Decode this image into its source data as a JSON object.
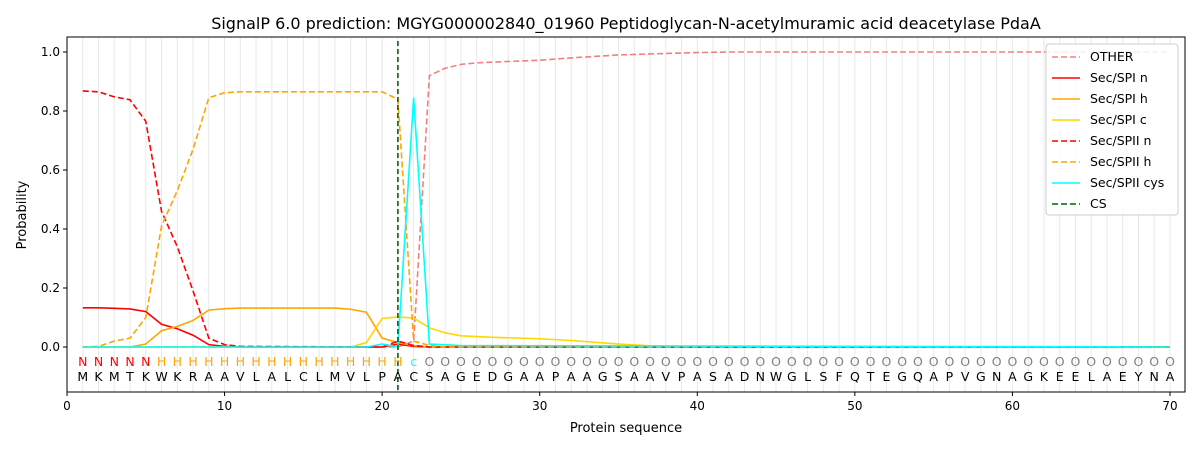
{
  "chart_data": {
    "type": "line",
    "title": "SignalP 6.0 prediction: MGYG000002840_01960 Peptidoglycan-N-acetylmuramic acid deacetylase PdaA",
    "xlabel": "Protein sequence",
    "ylabel": "Probability",
    "xlim": [
      0,
      71
    ],
    "ylim": [
      -0.13,
      1.05
    ],
    "xticks": [
      0,
      10,
      20,
      30,
      40,
      50,
      60,
      70
    ],
    "yticks": [
      "0.0",
      "0.2",
      "0.4",
      "0.6",
      "0.8",
      "1.0"
    ],
    "sequence": "MKMTKWKRAAVLALCLMVLPACSAGEDGAAPAAGSAAVPASADNWGLSFQTEGQAPVGNAGKEELAEYNA",
    "labels": "NNNNNHHHHHHHHHHHHHHHHcOOOOOOOOOOOOOOOOOOOOOOOOOOOOOOOOOOOOOOOOOOOOOOOO",
    "label_colors": {
      "N": "#ff0000",
      "H": "#ffa500",
      "c": "#00ffff",
      "O": "#808080"
    },
    "cs_position": 21,
    "legend_position": "top-right",
    "series": [
      {
        "name": "OTHER",
        "color": "#f08080",
        "dash": true,
        "points": [
          [
            1,
            0
          ],
          [
            21,
            0
          ],
          [
            22,
            0.02
          ],
          [
            23,
            0.92
          ],
          [
            24,
            0.945
          ],
          [
            25,
            0.958
          ],
          [
            26,
            0.963
          ],
          [
            28,
            0.968
          ],
          [
            30,
            0.972
          ],
          [
            32,
            0.98
          ],
          [
            35,
            0.99
          ],
          [
            38,
            0.995
          ],
          [
            40,
            0.998
          ],
          [
            42,
            1
          ],
          [
            70,
            1
          ]
        ]
      },
      {
        "name": "Sec/SPI n",
        "color": "#ff0000",
        "dash": false,
        "points": [
          [
            1,
            0.133
          ],
          [
            2,
            0.133
          ],
          [
            3,
            0.131
          ],
          [
            4,
            0.129
          ],
          [
            5,
            0.12
          ],
          [
            6,
            0.077
          ],
          [
            7,
            0.062
          ],
          [
            8,
            0.04
          ],
          [
            9,
            0.008
          ],
          [
            10,
            0.002
          ],
          [
            11,
            0
          ],
          [
            20,
            0
          ],
          [
            21,
            0.01
          ],
          [
            22,
            0.002
          ],
          [
            23,
            0
          ],
          [
            70,
            0
          ]
        ]
      },
      {
        "name": "Sec/SPI h",
        "color": "#ffa500",
        "dash": false,
        "points": [
          [
            1,
            0
          ],
          [
            4,
            0
          ],
          [
            5,
            0.01
          ],
          [
            6,
            0.055
          ],
          [
            7,
            0.07
          ],
          [
            8,
            0.09
          ],
          [
            9,
            0.125
          ],
          [
            10,
            0.13
          ],
          [
            11,
            0.132
          ],
          [
            17,
            0.132
          ],
          [
            18,
            0.128
          ],
          [
            19,
            0.118
          ],
          [
            20,
            0.03
          ],
          [
            21,
            0.015
          ],
          [
            22,
            0.005
          ],
          [
            23,
            0
          ],
          [
            70,
            0
          ]
        ]
      },
      {
        "name": "Sec/SPI c",
        "color": "#ffd700",
        "dash": false,
        "points": [
          [
            1,
            0
          ],
          [
            18,
            0
          ],
          [
            19,
            0.015
          ],
          [
            20,
            0.097
          ],
          [
            21,
            0.102
          ],
          [
            22,
            0.098
          ],
          [
            23,
            0.065
          ],
          [
            24,
            0.048
          ],
          [
            25,
            0.038
          ],
          [
            27,
            0.033
          ],
          [
            30,
            0.028
          ],
          [
            32,
            0.022
          ],
          [
            35,
            0.01
          ],
          [
            37,
            0.004
          ],
          [
            40,
            0.001
          ],
          [
            70,
            0
          ]
        ]
      },
      {
        "name": "Sec/SPII n",
        "color": "#ff0000",
        "dash": true,
        "points": [
          [
            1,
            0.868
          ],
          [
            2,
            0.865
          ],
          [
            3,
            0.848
          ],
          [
            4,
            0.838
          ],
          [
            5,
            0.765
          ],
          [
            6,
            0.46
          ],
          [
            7,
            0.34
          ],
          [
            8,
            0.19
          ],
          [
            9,
            0.03
          ],
          [
            10,
            0.008
          ],
          [
            11,
            0.002
          ],
          [
            20,
            0
          ],
          [
            21,
            0.02
          ],
          [
            22,
            0.005
          ],
          [
            23,
            0
          ],
          [
            70,
            0
          ]
        ]
      },
      {
        "name": "Sec/SPII h",
        "color": "#ffa500",
        "dash": true,
        "points": [
          [
            1,
            0
          ],
          [
            2,
            0.002
          ],
          [
            3,
            0.02
          ],
          [
            4,
            0.03
          ],
          [
            5,
            0.1
          ],
          [
            6,
            0.41
          ],
          [
            7,
            0.53
          ],
          [
            8,
            0.67
          ],
          [
            9,
            0.845
          ],
          [
            10,
            0.862
          ],
          [
            11,
            0.865
          ],
          [
            20,
            0.865
          ],
          [
            21,
            0.84
          ],
          [
            22,
            0.02
          ],
          [
            23,
            0.005
          ],
          [
            24,
            0
          ],
          [
            70,
            0
          ]
        ]
      },
      {
        "name": "Sec/SPII cys",
        "color": "#00ffff",
        "dash": false,
        "points": [
          [
            1,
            0
          ],
          [
            19,
            0
          ],
          [
            20,
            0.01
          ],
          [
            21,
            0
          ],
          [
            22,
            0.845
          ],
          [
            22.8,
            0.18
          ],
          [
            23,
            0.01
          ],
          [
            25,
            0.005
          ],
          [
            70,
            0
          ]
        ]
      }
    ],
    "cs_legend": "CS",
    "cs_color": "#006400"
  }
}
